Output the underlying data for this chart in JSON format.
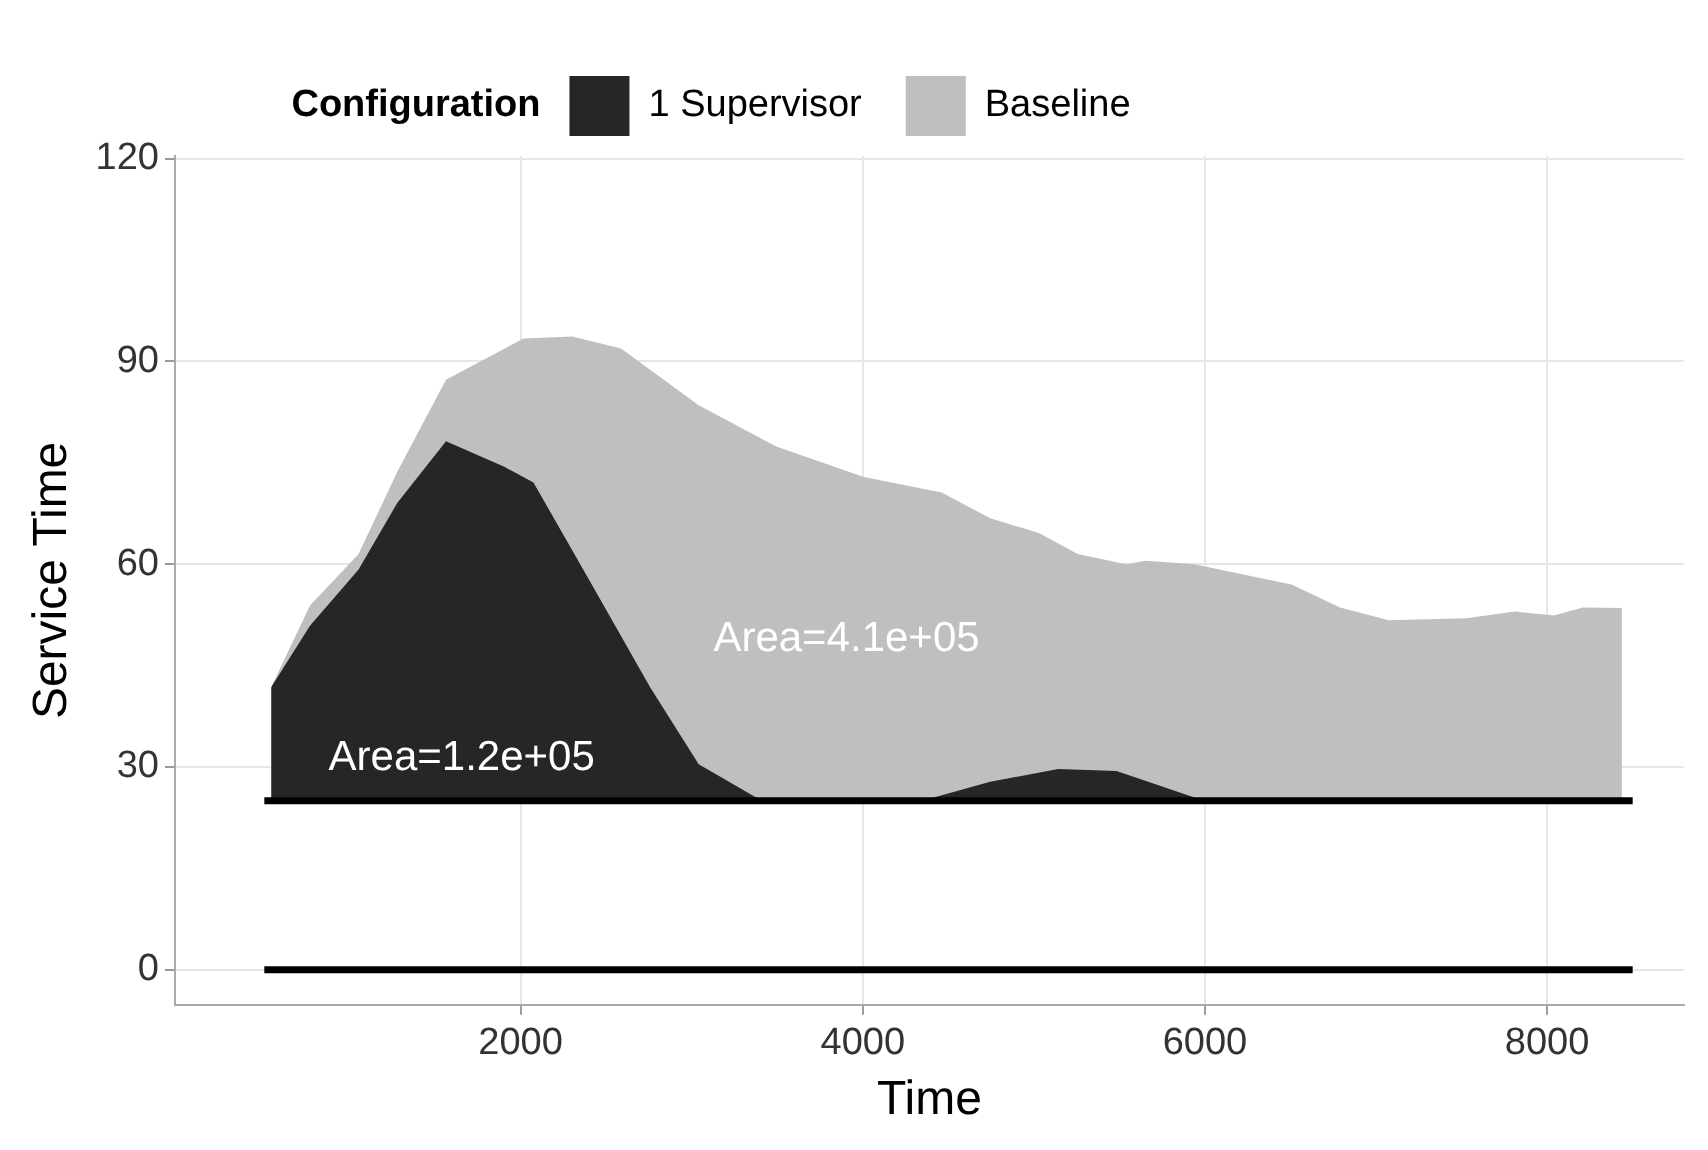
{
  "chart_data": {
    "type": "area",
    "xlabel": "Time",
    "ylabel": "Service Time",
    "legend_title": "Configuration",
    "legend": "top",
    "xlim": [
      -20,
      8800
    ],
    "xticks": [
      2000,
      4000,
      6000,
      8000
    ],
    "ylim": [
      -5.2,
      120.4
    ],
    "yticks": [
      0,
      30,
      60,
      90,
      120
    ],
    "grid": true,
    "series": [
      {
        "name": "1 Supervisor",
        "color": "#262626",
        "x": [
          542,
          769,
          1053,
          1280,
          1564,
          1905,
          2075,
          2416,
          2757,
          3041,
          3382,
          4404,
          4745,
          5143,
          5483,
          5995,
          8437
        ],
        "values": [
          41.8,
          50.9,
          59.2,
          69.1,
          78.2,
          74.4,
          72.1,
          57.0,
          41.8,
          30.4,
          25.4,
          25.4,
          27.8,
          29.7,
          29.4,
          25,
          25
        ]
      },
      {
        "name": "Baseline",
        "color": "#bfbfbf",
        "x": [
          542,
          769,
          1053,
          1280,
          1564,
          2018,
          2303,
          2587,
          3041,
          3495,
          4006,
          4461,
          4745,
          5029,
          5256,
          5540,
          5654,
          5938,
          6506,
          6790,
          7074,
          7528,
          7812,
          8040,
          8210,
          8437
        ],
        "values": [
          41.8,
          53.9,
          61.5,
          73.7,
          87.3,
          93.4,
          93.7,
          91.9,
          83.5,
          77.4,
          72.9,
          70.6,
          66.8,
          64.6,
          61.5,
          60.0,
          60.5,
          60.0,
          57.0,
          53.6,
          51.7,
          52.0,
          53.0,
          52.4,
          53.6,
          53.5
        ]
      },
      {
        "type": "line",
        "color": "#000000",
        "x": [
          502,
          8500
        ],
        "values": [
          25,
          25
        ]
      },
      {
        "type": "line",
        "color": "#000000",
        "x": [
          502,
          8500
        ],
        "values": [
          0,
          0
        ]
      }
    ],
    "annotations": [
      "Area=4.1e+05",
      "Area=1.2e+05"
    ]
  }
}
